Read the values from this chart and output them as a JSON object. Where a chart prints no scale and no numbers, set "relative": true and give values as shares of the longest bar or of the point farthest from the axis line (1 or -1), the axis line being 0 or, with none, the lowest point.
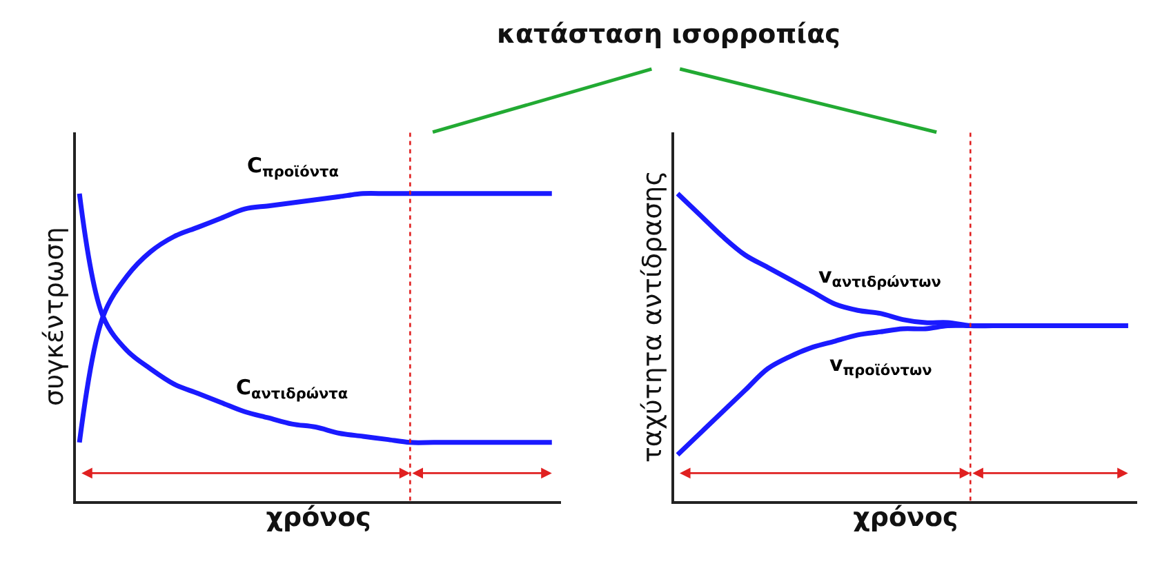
{
  "chart_data": [
    {
      "type": "line",
      "title": "κατάσταση ισορροπίας",
      "xlabel": "χρόνος",
      "ylabel": "συγκέντρωση",
      "relative": true,
      "tick_labels": false,
      "marker": "none",
      "line_style": "solid",
      "categories": [
        null,
        null,
        null,
        null,
        null,
        null,
        null,
        null,
        null,
        null,
        null,
        null,
        null,
        null,
        null,
        null,
        null,
        null,
        null,
        null,
        null
      ],
      "series": [
        {
          "name": "C$_{προϊόντα}$",
          "color": "#1a1aff",
          "values": [
            0.19,
            0.6,
            0.73,
            0.81,
            0.86,
            0.89,
            0.92,
            0.95,
            0.96,
            0.97,
            0.98,
            0.99,
            1.0,
            1.0,
            1.0,
            1.0,
            1.0,
            1.0,
            1.0,
            1.0,
            1.0
          ]
        },
        {
          "name": "C$_{αντιδρώντα}$",
          "color": "#1a1aff",
          "values": [
            1.0,
            0.6,
            0.49,
            0.43,
            0.38,
            0.35,
            0.32,
            0.29,
            0.27,
            0.25,
            0.24,
            0.22,
            0.21,
            0.2,
            0.19,
            0.19,
            0.19,
            0.19,
            0.19,
            0.19,
            0.19
          ]
        }
      ]
    },
    {
      "type": "line",
      "xlabel": "χρόνος",
      "ylabel": "ταχύτητα αντίδρασης",
      "relative": true,
      "tick_labels": false,
      "marker": "none",
      "line_style": "solid",
      "categories": [
        null,
        null,
        null,
        null,
        null,
        null,
        null,
        null,
        null,
        null,
        null,
        null,
        null,
        null,
        null,
        null,
        null,
        null,
        null,
        null,
        null
      ],
      "series": [
        {
          "name": "v$_{αντιδρώντων}$",
          "color": "#1a1aff",
          "values": [
            1.0,
            0.93,
            0.86,
            0.8,
            0.76,
            0.72,
            0.68,
            0.64,
            0.62,
            0.61,
            0.59,
            0.58,
            0.58,
            0.57,
            0.57,
            0.57,
            0.57,
            0.57,
            0.57,
            0.57,
            0.57
          ]
        },
        {
          "name": "v$_{προϊόντων}$",
          "color": "#1a1aff",
          "values": [
            0.15,
            0.22,
            0.29,
            0.36,
            0.43,
            0.47,
            0.5,
            0.52,
            0.54,
            0.55,
            0.56,
            0.56,
            0.57,
            0.57,
            0.57,
            0.57,
            0.57,
            0.57,
            0.57,
            0.57,
            0.57
          ]
        }
      ]
    }
  ]
}
